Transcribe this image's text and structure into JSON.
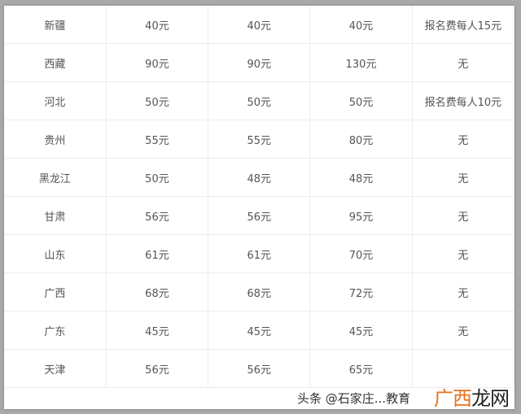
{
  "table": {
    "rows": [
      [
        "新疆",
        "40元",
        "40元",
        "40元",
        "报名费每人15元"
      ],
      [
        "西藏",
        "90元",
        "90元",
        "130元",
        "无"
      ],
      [
        "河北",
        "50元",
        "50元",
        "50元",
        "报名费每人10元"
      ],
      [
        "贵州",
        "55元",
        "55元",
        "80元",
        "无"
      ],
      [
        "黑龙江",
        "50元",
        "48元",
        "48元",
        "无"
      ],
      [
        "甘肃",
        "56元",
        "56元",
        "95元",
        "无"
      ],
      [
        "山东",
        "61元",
        "61元",
        "70元",
        "无"
      ],
      [
        "广西",
        "68元",
        "68元",
        "72元",
        "无"
      ],
      [
        "广东",
        "45元",
        "45元",
        "45元",
        "无"
      ],
      [
        "天津",
        "56元",
        "56元",
        "65元",
        ""
      ]
    ]
  },
  "watermark": {
    "text": "头条 @石家庄...教育"
  },
  "logo": {
    "part1": "广西",
    "part2": "龙网",
    "accent": "#e8701a"
  }
}
